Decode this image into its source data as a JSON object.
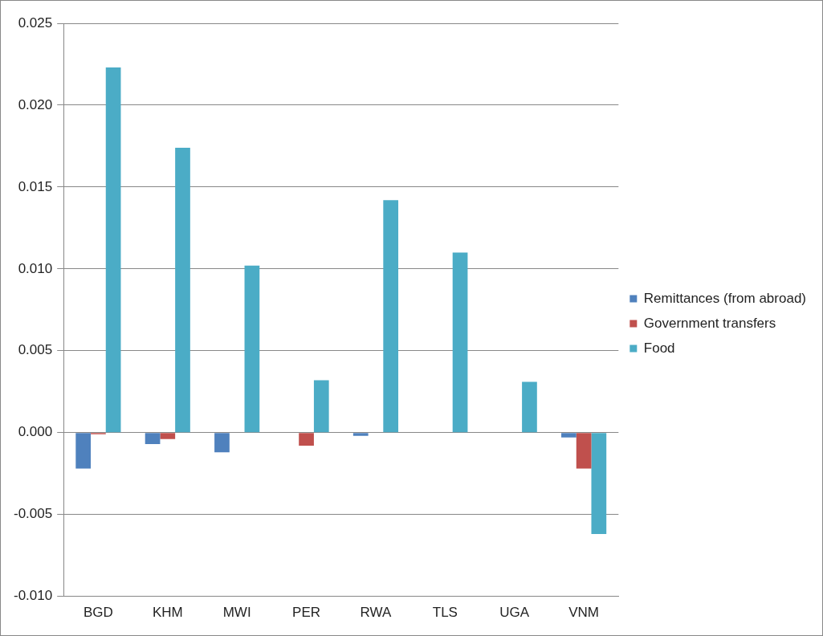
{
  "chart_data": {
    "type": "bar",
    "categories": [
      "BGD",
      "KHM",
      "MWI",
      "PER",
      "RWA",
      "TLS",
      "UGA",
      "VNM"
    ],
    "series": [
      {
        "name": "Remittances (from abroad)",
        "color": "#4f81bd",
        "values": [
          -0.0022,
          -0.0007,
          -0.0012,
          0,
          -0.0002,
          0,
          0,
          -0.0003
        ]
      },
      {
        "name": "Government transfers",
        "color": "#c0504d",
        "values": [
          -0.0001,
          -0.0004,
          0,
          -0.0008,
          0,
          0,
          0,
          -0.0022
        ]
      },
      {
        "name": "Food",
        "color": "#4bacc6",
        "values": [
          0.0223,
          0.0174,
          0.0102,
          0.0032,
          0.0142,
          0.011,
          0.0031,
          -0.0062
        ]
      }
    ],
    "ylim": [
      -0.01,
      0.025
    ],
    "yticks": [
      {
        "value": -0.01,
        "label": "-0.010"
      },
      {
        "value": -0.005,
        "label": "-0.005"
      },
      {
        "value": 0,
        "label": "0.000"
      },
      {
        "value": 0.005,
        "label": "0.005"
      },
      {
        "value": 0.01,
        "label": "0.010"
      },
      {
        "value": 0.015,
        "label": "0.015"
      },
      {
        "value": 0.02,
        "label": "0.020"
      },
      {
        "value": 0.025,
        "label": "0.025"
      }
    ],
    "grid": "y",
    "legend": "right"
  }
}
